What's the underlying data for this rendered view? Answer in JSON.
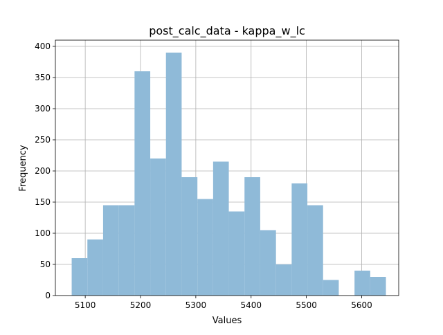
{
  "chart_data": {
    "type": "bar",
    "title": "post_calc_data - kappa_w_lc",
    "xlabel": "Values",
    "ylabel": "Frequency",
    "xlim": [
      5046,
      5667
    ],
    "ylim": [
      0,
      410
    ],
    "grid": true,
    "legend": "none",
    "bar_color": "#8fbad8",
    "x_ticks": [
      5100,
      5200,
      5300,
      5400,
      5500,
      5600
    ],
    "y_ticks": [
      0,
      50,
      100,
      150,
      200,
      250,
      300,
      350,
      400
    ],
    "bins": [
      {
        "start": 5075.5,
        "end": 5103.9,
        "value": 60
      },
      {
        "start": 5103.9,
        "end": 5132.3,
        "value": 90
      },
      {
        "start": 5132.3,
        "end": 5160.8,
        "value": 145
      },
      {
        "start": 5160.8,
        "end": 5189.2,
        "value": 145
      },
      {
        "start": 5189.2,
        "end": 5217.6,
        "value": 360
      },
      {
        "start": 5217.6,
        "end": 5246.0,
        "value": 220
      },
      {
        "start": 5246.0,
        "end": 5274.4,
        "value": 390
      },
      {
        "start": 5274.4,
        "end": 5302.9,
        "value": 190
      },
      {
        "start": 5302.9,
        "end": 5331.3,
        "value": 155
      },
      {
        "start": 5331.3,
        "end": 5359.7,
        "value": 215
      },
      {
        "start": 5359.7,
        "end": 5388.1,
        "value": 135
      },
      {
        "start": 5388.1,
        "end": 5416.5,
        "value": 190
      },
      {
        "start": 5416.5,
        "end": 5445.0,
        "value": 105
      },
      {
        "start": 5445.0,
        "end": 5473.4,
        "value": 50
      },
      {
        "start": 5473.4,
        "end": 5501.8,
        "value": 180
      },
      {
        "start": 5501.8,
        "end": 5530.2,
        "value": 145
      },
      {
        "start": 5530.2,
        "end": 5558.6,
        "value": 25
      },
      {
        "start": 5558.6,
        "end": 5587.1,
        "value": 0
      },
      {
        "start": 5587.1,
        "end": 5615.5,
        "value": 40
      },
      {
        "start": 5615.5,
        "end": 5643.9,
        "value": 30
      }
    ]
  }
}
